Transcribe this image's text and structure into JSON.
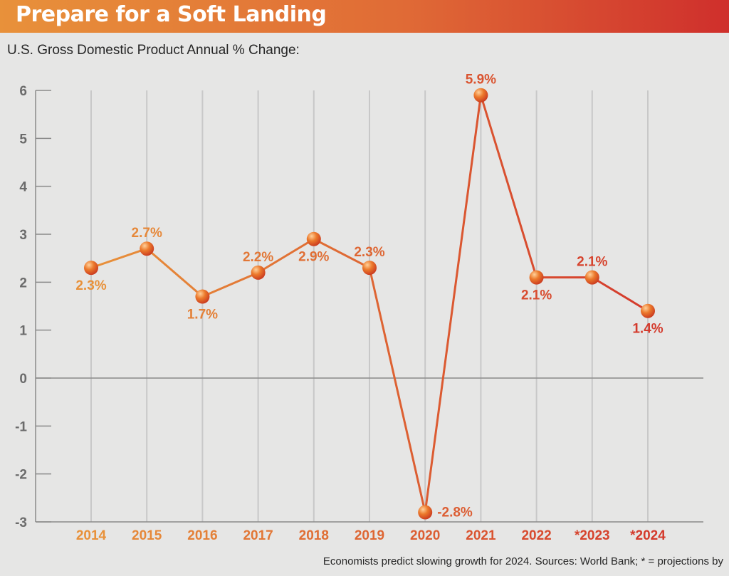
{
  "header": {
    "title": "Prepare for a Soft Landing",
    "subtitle": "U.S. Gross Domestic Product Annual % Change:"
  },
  "footer": {
    "note": "Economists predict slowing growth for 2024. Sources: World Bank; * = projections by"
  },
  "colors": {
    "banner_start": "#e8913a",
    "banner_end": "#cf2f2c",
    "line_start": "#e8913a",
    "line_end": "#d43a2c",
    "grid": "#c8c8c8",
    "axis": "#8a8a8a",
    "tick": "#6b6b6b"
  },
  "chart_data": {
    "type": "line",
    "title": "U.S. Gross Domestic Product Annual % Change:",
    "categories": [
      "2014",
      "2015",
      "2016",
      "2017",
      "2018",
      "2019",
      "2020",
      "2021",
      "2022",
      "*2023",
      "*2024"
    ],
    "values": [
      2.3,
      2.7,
      1.7,
      2.2,
      2.9,
      2.3,
      -2.8,
      5.9,
      2.1,
      2.1,
      1.4
    ],
    "data_labels": [
      "2.3%",
      "2.7%",
      "1.7%",
      "2.2%",
      "2.9%",
      "2.3%",
      "-2.8%",
      "5.9%",
      "2.1%",
      "2.1%",
      "1.4%"
    ],
    "yticks": [
      6,
      5,
      4,
      3,
      2,
      1,
      0,
      -1,
      -2,
      -3
    ],
    "ytick_labels": [
      "6",
      "5",
      "4",
      "3",
      "2",
      "1",
      "0",
      "-1",
      "-2",
      "-3"
    ],
    "ylim": [
      -3,
      6
    ],
    "xlabel": "",
    "ylabel": "",
    "grid": true,
    "legend": "none"
  }
}
